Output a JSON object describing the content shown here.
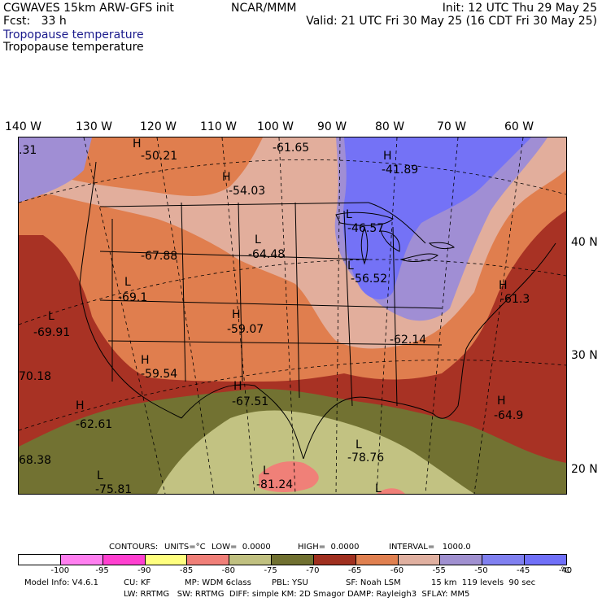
{
  "header": {
    "model_line": "CGWAVES 15km ARW-GFS init",
    "fcst_line": "Fcst:   33 h",
    "center": "NCAR/MMM",
    "init": "Init: 12 UTC Thu 29 May 25",
    "valid": "Valid: 21 UTC Fri 30 May 25 (16 CDT Fri 30 May 25)",
    "field_title_1": "Tropopause temperature",
    "field_title_2": "Tropopause temperature"
  },
  "axes": {
    "longitudes": [
      "140 W",
      "130 W",
      "120 W",
      "110 W",
      "100 W",
      "90 W",
      "80 W",
      "70 W",
      "60 W"
    ],
    "latitudes": [
      "40 N",
      "30 N",
      "20 N"
    ]
  },
  "map_labels": [
    {
      "text": "H"
    },
    {
      "text": "-50.21"
    },
    {
      "text": "-61.65"
    },
    {
      "text": "H"
    },
    {
      "text": "-41.89"
    },
    {
      "text": "H"
    },
    {
      "text": "-54.03"
    },
    {
      "text": ".31"
    },
    {
      "text": "L"
    },
    {
      "text": "-46.57"
    },
    {
      "text": "L"
    },
    {
      "text": "-64.48"
    },
    {
      "text": "-67.88"
    },
    {
      "text": "L"
    },
    {
      "text": "-56.52"
    },
    {
      "text": "L"
    },
    {
      "text": "-69.1"
    },
    {
      "text": "H"
    },
    {
      "text": "-61.3"
    },
    {
      "text": "L"
    },
    {
      "text": "-69.91"
    },
    {
      "text": "H"
    },
    {
      "text": "-59.07"
    },
    {
      "text": "-62.14"
    },
    {
      "text": "H"
    },
    {
      "text": "-59.54"
    },
    {
      "text": "70.18"
    },
    {
      "text": "H"
    },
    {
      "text": "-67.51"
    },
    {
      "text": "H"
    },
    {
      "text": "-64.9"
    },
    {
      "text": "H"
    },
    {
      "text": "-62.61"
    },
    {
      "text": "L"
    },
    {
      "text": "-78.76"
    },
    {
      "text": "68.38"
    },
    {
      "text": "L"
    },
    {
      "text": "-81.24"
    },
    {
      "text": "L"
    },
    {
      "text": "-75.81"
    },
    {
      "text": "L"
    }
  ],
  "contour_info": {
    "contours": "CONTOURS:",
    "units": "UNITS=°C",
    "low": "LOW=  0.0000",
    "high": "HIGH=  0.0000",
    "interval": "INTERVAL=   1000.0"
  },
  "colorbar": {
    "colors": [
      "#ffffff",
      "#ff7ff0",
      "#ff40d0",
      "#ffff7f",
      "#f07f78",
      "#c0c080",
      "#707030",
      "#a03020",
      "#e08050",
      "#e0b0a0",
      "#a090d0",
      "#8080f0",
      "#7070f8"
    ],
    "ticks": [
      "-100",
      "-95",
      "-90",
      "-85",
      "-80",
      "-75",
      "-70",
      "-65",
      "-60",
      "-55",
      "-50",
      "-45",
      "-40"
    ],
    "unit": "°C"
  },
  "footer": {
    "line1_a": "Model Info: V4.6.1",
    "line1_b": "CU: KF",
    "line1_c": "MP: WDM 6class",
    "line1_d": "PBL: YSU",
    "line1_e": "SF: Noah LSM",
    "line1_f": "15 km  119 levels  90 sec",
    "line2": "LW: RRTMG   SW: RRTMG  DIFF: simple KM: 2D Smagor DAMP: Rayleigh3  SFLAY: MM5"
  }
}
